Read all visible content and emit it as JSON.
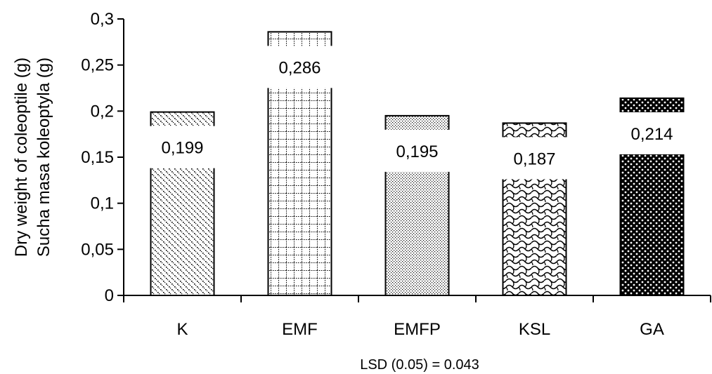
{
  "chart_data": {
    "type": "bar",
    "categories": [
      "K",
      "EMF",
      "EMFP",
      "KSL",
      "GA"
    ],
    "values": [
      0.199,
      0.286,
      0.195,
      0.187,
      0.214
    ],
    "value_labels": [
      "0,199",
      "0,286",
      "0,195",
      "0,187",
      "0,214"
    ],
    "ylabel_lines": [
      "Dry weight of coleoptile (g)",
      "Sucha masa koleoptyla (g)"
    ],
    "ylim": [
      0,
      0.3
    ],
    "yticks": [
      0,
      0.05,
      0.1,
      0.15,
      0.2,
      0.25,
      0.3
    ],
    "ytick_labels": [
      "0",
      "0,05",
      "0,1",
      "0,15",
      "0,2",
      "0,25",
      "0,3"
    ],
    "annotation": "LSD (0.05) = 0.043",
    "grid": false,
    "legend": "none",
    "patterns": [
      "diagonal-dots",
      "grid",
      "fine-dots",
      "wave",
      "circles"
    ],
    "bar_color": "#000000",
    "background": "#ffffff"
  }
}
